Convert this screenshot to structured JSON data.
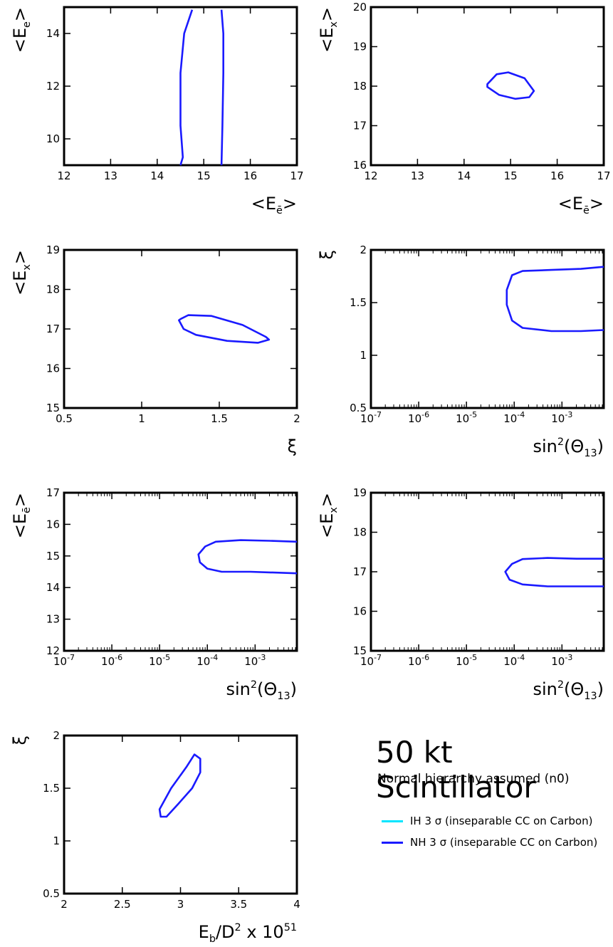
{
  "chart_data": [
    {
      "type": "line",
      "title": "",
      "xlabel": "<E_ē>",
      "ylabel": "<E_e>",
      "xlim": [
        12,
        17
      ],
      "ylim": [
        9,
        15
      ],
      "x_ticks": [
        "12",
        "13",
        "14",
        "15",
        "16",
        "17"
      ],
      "y_ticks": [
        "10",
        "12",
        "14"
      ],
      "series": [
        {
          "legend": "NH",
          "points": [
            [
              14.5,
              9
            ],
            [
              14.55,
              9.3
            ],
            [
              14.5,
              10.5
            ],
            [
              14.5,
              12.5
            ],
            [
              14.58,
              14
            ],
            [
              14.75,
              14.9
            ]
          ]
        },
        {
          "legend": "NH",
          "points": [
            [
              15.38,
              9
            ],
            [
              15.4,
              10.5
            ],
            [
              15.42,
              12.5
            ],
            [
              15.42,
              14
            ],
            [
              15.38,
              14.9
            ]
          ]
        }
      ]
    },
    {
      "type": "line",
      "title": "",
      "xlabel": "<E_ē>",
      "ylabel": "<E_x>",
      "xlim": [
        12,
        17
      ],
      "ylim": [
        16,
        20
      ],
      "x_ticks": [
        "12",
        "13",
        "14",
        "15",
        "16",
        "17"
      ],
      "y_ticks": [
        "16",
        "17",
        "18",
        "19",
        "20"
      ],
      "series": [
        {
          "legend": "NH",
          "closed": true,
          "points": [
            [
              14.5,
              18.05
            ],
            [
              14.7,
              18.3
            ],
            [
              14.95,
              18.35
            ],
            [
              15.3,
              18.2
            ],
            [
              15.5,
              17.88
            ],
            [
              15.4,
              17.72
            ],
            [
              15.1,
              17.68
            ],
            [
              14.75,
              17.78
            ],
            [
              14.5,
              17.98
            ]
          ]
        }
      ]
    },
    {
      "type": "line",
      "title": "",
      "xlabel": "ξ",
      "ylabel": "<E_x>",
      "xlim": [
        0.5,
        2
      ],
      "ylim": [
        15,
        19
      ],
      "x_ticks": [
        "0.5",
        "1",
        "1.5",
        "2"
      ],
      "y_ticks": [
        "15",
        "16",
        "17",
        "18",
        "19"
      ],
      "series": [
        {
          "legend": "NH",
          "closed": true,
          "points": [
            [
              1.25,
              17.25
            ],
            [
              1.3,
              17.35
            ],
            [
              1.45,
              17.33
            ],
            [
              1.65,
              17.1
            ],
            [
              1.8,
              16.8
            ],
            [
              1.82,
              16.73
            ],
            [
              1.75,
              16.65
            ],
            [
              1.55,
              16.7
            ],
            [
              1.35,
              16.85
            ],
            [
              1.27,
              17.0
            ],
            [
              1.24,
              17.22
            ]
          ]
        }
      ]
    },
    {
      "type": "line",
      "title": "",
      "xlabel": "sin²(Θ13)",
      "ylabel": "ξ",
      "xscale": "log",
      "xlim": [
        1e-07,
        0.0075
      ],
      "ylim": [
        0.5,
        2
      ],
      "x_ticks": [
        "10^-7",
        "10^-6",
        "10^-5",
        "10^-4",
        "10^-3"
      ],
      "y_ticks": [
        "0.5",
        "1",
        "1.5",
        "2"
      ],
      "series": [
        {
          "legend": "NH",
          "points": [
            [
              0.0075,
              1.84
            ],
            [
              0.0025,
              1.82
            ],
            [
              0.0006,
              1.81
            ],
            [
              0.00015,
              1.8
            ],
            [
              9e-05,
              1.76
            ],
            [
              7e-05,
              1.62
            ],
            [
              7e-05,
              1.48
            ],
            [
              9e-05,
              1.33
            ],
            [
              0.00015,
              1.26
            ],
            [
              0.0006,
              1.23
            ],
            [
              0.0025,
              1.23
            ],
            [
              0.0075,
              1.24
            ]
          ]
        }
      ]
    },
    {
      "type": "line",
      "title": "",
      "xlabel": "sin²(Θ13)",
      "ylabel": "<E_ē>",
      "xscale": "log",
      "xlim": [
        1e-07,
        0.0075
      ],
      "ylim": [
        12,
        17
      ],
      "x_ticks": [
        "10^-7",
        "10^-6",
        "10^-5",
        "10^-4",
        "10^-3"
      ],
      "y_ticks": [
        "12",
        "13",
        "14",
        "15",
        "16",
        "17"
      ],
      "series": [
        {
          "legend": "NH",
          "points": [
            [
              0.0075,
              15.45
            ],
            [
              0.002,
              15.48
            ],
            [
              0.0005,
              15.5
            ],
            [
              0.00015,
              15.45
            ],
            [
              9e-05,
              15.3
            ],
            [
              6.5e-05,
              15.05
            ],
            [
              7e-05,
              14.8
            ],
            [
              0.0001,
              14.6
            ],
            [
              0.0002,
              14.5
            ],
            [
              0.0008,
              14.5
            ],
            [
              0.0075,
              14.45
            ]
          ]
        }
      ]
    },
    {
      "type": "line",
      "title": "",
      "xlabel": "sin²(Θ13)",
      "ylabel": "<E_x>",
      "xscale": "log",
      "xlim": [
        1e-07,
        0.0075
      ],
      "ylim": [
        15,
        19
      ],
      "x_ticks": [
        "10^-7",
        "10^-6",
        "10^-5",
        "10^-4",
        "10^-3"
      ],
      "y_ticks": [
        "15",
        "16",
        "17",
        "18",
        "19"
      ],
      "series": [
        {
          "legend": "NH",
          "points": [
            [
              0.0075,
              17.33
            ],
            [
              0.002,
              17.33
            ],
            [
              0.0005,
              17.35
            ],
            [
              0.00015,
              17.32
            ],
            [
              9e-05,
              17.2
            ],
            [
              6.5e-05,
              17.0
            ],
            [
              8e-05,
              16.8
            ],
            [
              0.00015,
              16.68
            ],
            [
              0.0005,
              16.63
            ],
            [
              0.002,
              16.63
            ],
            [
              0.0075,
              16.63
            ]
          ]
        }
      ]
    },
    {
      "type": "line",
      "title": "",
      "xlabel": "E_b/D² x 10^51",
      "ylabel": "ξ",
      "xlim": [
        2,
        4
      ],
      "ylim": [
        0.5,
        2
      ],
      "x_ticks": [
        "2",
        "2.5",
        "3",
        "3.5",
        "4"
      ],
      "y_ticks": [
        "0.5",
        "1",
        "1.5",
        "2"
      ],
      "series": [
        {
          "legend": "NH",
          "closed": true,
          "points": [
            [
              2.83,
              1.23
            ],
            [
              2.82,
              1.3
            ],
            [
              2.92,
              1.5
            ],
            [
              3.05,
              1.7
            ],
            [
              3.12,
              1.82
            ],
            [
              3.17,
              1.78
            ],
            [
              3.17,
              1.65
            ],
            [
              3.1,
              1.5
            ],
            [
              2.98,
              1.35
            ],
            [
              2.88,
              1.23
            ]
          ]
        }
      ]
    }
  ],
  "annotation": {
    "title": "50 kt Scintillator",
    "subtitle": "Normal hierarchy assumed (n0)"
  },
  "legend": [
    {
      "key": "IH",
      "label": "IH  3 σ (inseparable CC on Carbon)",
      "color": "#00e5ff"
    },
    {
      "key": "NH",
      "label": "NH 3 σ (inseparable CC on Carbon)",
      "color": "#1a1aff"
    }
  ]
}
